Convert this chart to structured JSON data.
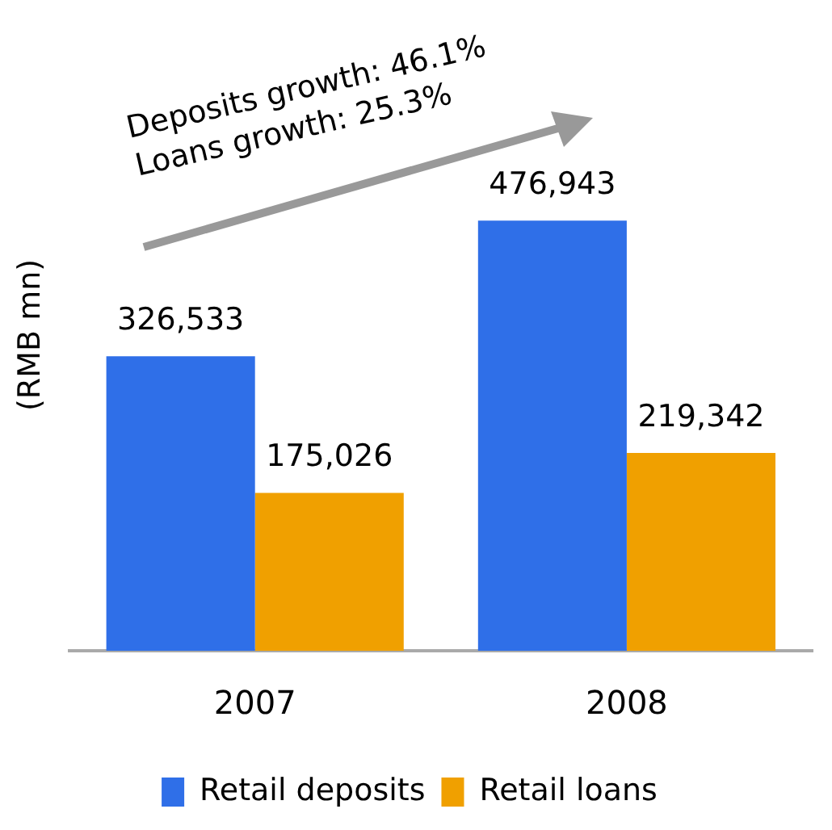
{
  "chart_data": {
    "type": "bar",
    "ylabel": "(RMB mn)",
    "categories": [
      "2007",
      "2008"
    ],
    "series": [
      {
        "name": "Retail deposits",
        "color": "#2f6fe8",
        "values": [
          326533,
          476943
        ],
        "value_labels": [
          "326,533",
          "476,943"
        ]
      },
      {
        "name": "Retail loans",
        "color": "#f0a000",
        "values": [
          175026,
          219342
        ],
        "value_labels": [
          "175,026",
          "219,342"
        ]
      }
    ],
    "grid": false,
    "legend": "bottom",
    "annotations": [
      "Deposits growth: 46.1%",
      "Loans growth: 25.3%"
    ]
  }
}
